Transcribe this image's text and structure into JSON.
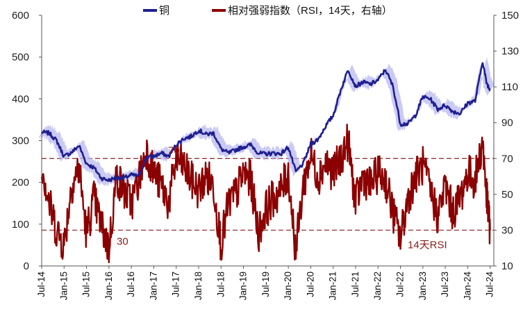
{
  "chart_data": {
    "type": "line",
    "legend": {
      "position": "top",
      "entries": [
        {
          "label": "铜",
          "color": "#1f1f8f"
        },
        {
          "label": "相对强弱指数（RSI，14天，右轴）",
          "color": "#8b0000"
        }
      ]
    },
    "left_axis": {
      "min": 0,
      "max": 600,
      "ticks": [
        "0",
        "100",
        "200",
        "300",
        "400",
        "500",
        "600"
      ]
    },
    "right_axis": {
      "min": 10,
      "max": 150,
      "ticks": [
        "10",
        "30",
        "50",
        "70",
        "90",
        "110",
        "130",
        "150"
      ]
    },
    "x_tick_labels": [
      "Jul-14",
      "Jan-15",
      "Jul-15",
      "Jan-16",
      "Jul-16",
      "Jan-17",
      "Jul-17",
      "Jan-18",
      "Jul-18",
      "Jan-19",
      "Jul-19",
      "Jan-20",
      "Jul-20",
      "Jan-21",
      "Jul-21",
      "Jan-22",
      "Jul-22",
      "Jan-23",
      "Jul-23",
      "Jan-24",
      "Jul-24"
    ],
    "reference_lines": [
      {
        "axis": "right",
        "value": 70,
        "label": "70",
        "color": "#8b2020"
      },
      {
        "axis": "right",
        "value": 30,
        "label": "30",
        "color": "#8b2020"
      }
    ],
    "annotations": [
      {
        "text": "30",
        "color": "#8b2020"
      },
      {
        "text": "14天RSI",
        "color": "#8b2020"
      }
    ],
    "series": [
      {
        "name": "铜",
        "axis": "left",
        "color": "#1f1f8f",
        "band_color": "#b8b8f2",
        "x": [
          "2014-07",
          "2014-09",
          "2014-11",
          "2015-01",
          "2015-03",
          "2015-05",
          "2015-07",
          "2015-09",
          "2015-11",
          "2016-01",
          "2016-03",
          "2016-05",
          "2016-07",
          "2016-09",
          "2016-11",
          "2017-01",
          "2017-03",
          "2017-05",
          "2017-07",
          "2017-09",
          "2017-11",
          "2018-01",
          "2018-03",
          "2018-05",
          "2018-07",
          "2018-09",
          "2018-11",
          "2019-01",
          "2019-03",
          "2019-05",
          "2019-07",
          "2019-09",
          "2019-11",
          "2020-01",
          "2020-03",
          "2020-05",
          "2020-07",
          "2020-09",
          "2020-11",
          "2021-01",
          "2021-03",
          "2021-05",
          "2021-07",
          "2021-09",
          "2021-11",
          "2022-01",
          "2022-03",
          "2022-05",
          "2022-07",
          "2022-09",
          "2022-11",
          "2023-01",
          "2023-03",
          "2023-05",
          "2023-07",
          "2023-09",
          "2023-11",
          "2024-01",
          "2024-03",
          "2024-05",
          "2024-06",
          "2024-07"
        ],
        "values": [
          320,
          318,
          300,
          262,
          272,
          288,
          245,
          235,
          210,
          205,
          212,
          210,
          218,
          215,
          260,
          262,
          270,
          262,
          290,
          305,
          310,
          325,
          315,
          318,
          280,
          270,
          278,
          285,
          290,
          270,
          268,
          270,
          268,
          285,
          225,
          245,
          292,
          303,
          335,
          360,
          420,
          470,
          430,
          440,
          435,
          445,
          470,
          430,
          340,
          340,
          360,
          405,
          400,
          375,
          385,
          370,
          365,
          390,
          395,
          490,
          440,
          420
        ]
      },
      {
        "name": "相对强弱指数（RSI，14天，右轴）",
        "axis": "right",
        "color": "#8b0000",
        "x": [
          "2014-07",
          "2014-09",
          "2014-11",
          "2015-01",
          "2015-03",
          "2015-05",
          "2015-07",
          "2015-09",
          "2015-11",
          "2016-01",
          "2016-03",
          "2016-05",
          "2016-07",
          "2016-09",
          "2016-11",
          "2017-01",
          "2017-03",
          "2017-05",
          "2017-07",
          "2017-09",
          "2017-11",
          "2018-01",
          "2018-03",
          "2018-05",
          "2018-07",
          "2018-09",
          "2018-11",
          "2019-01",
          "2019-03",
          "2019-05",
          "2019-07",
          "2019-09",
          "2019-11",
          "2020-01",
          "2020-03",
          "2020-05",
          "2020-07",
          "2020-09",
          "2020-11",
          "2021-01",
          "2021-03",
          "2021-05",
          "2021-07",
          "2021-09",
          "2021-11",
          "2022-01",
          "2022-03",
          "2022-05",
          "2022-07",
          "2022-09",
          "2022-11",
          "2023-01",
          "2023-03",
          "2023-05",
          "2023-07",
          "2023-09",
          "2023-11",
          "2024-01",
          "2024-03",
          "2024-05",
          "2024-06",
          "2024-07"
        ],
        "values": [
          68,
          45,
          30,
          22,
          55,
          65,
          28,
          48,
          32,
          20,
          60,
          52,
          45,
          58,
          75,
          62,
          55,
          45,
          70,
          66,
          58,
          52,
          60,
          55,
          22,
          45,
          50,
          62,
          58,
          28,
          42,
          48,
          52,
          62,
          18,
          55,
          72,
          60,
          68,
          62,
          70,
          80,
          45,
          60,
          55,
          62,
          58,
          40,
          25,
          48,
          60,
          66,
          52,
          38,
          55,
          40,
          48,
          62,
          58,
          80,
          50,
          30
        ]
      }
    ]
  }
}
